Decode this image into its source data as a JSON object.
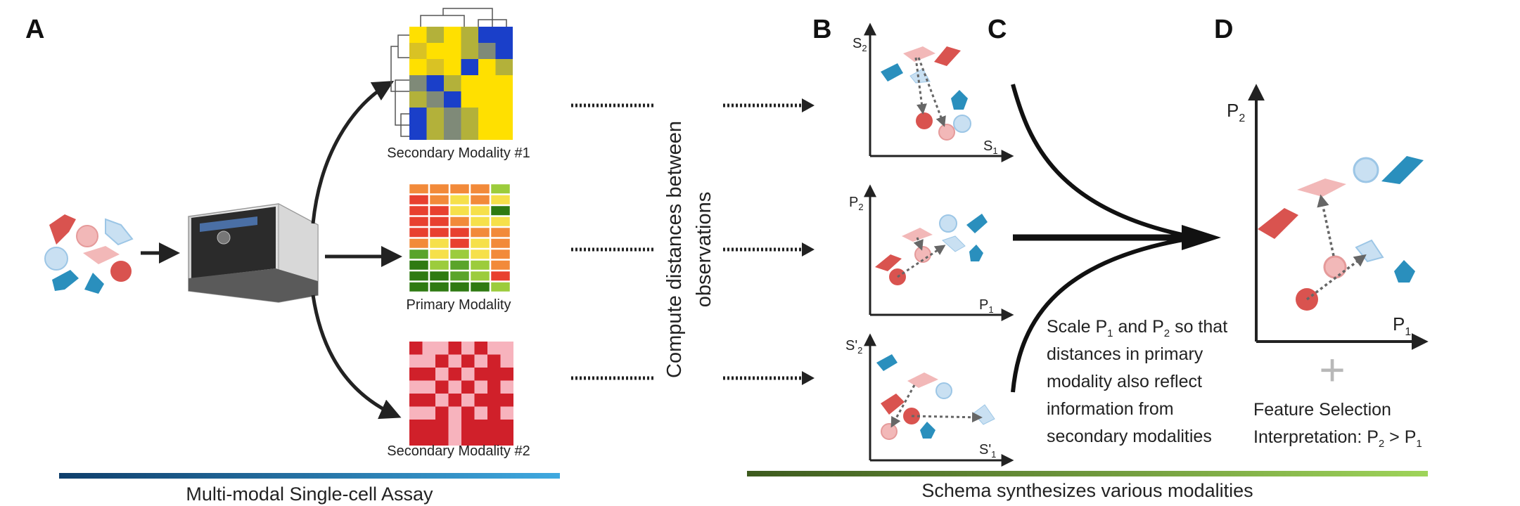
{
  "panels": {
    "a": "A",
    "b": "B",
    "c": "C",
    "d": "D"
  },
  "assay": {
    "secondary1_label": "Secondary Modality #1",
    "primary_label": "Primary Modality",
    "secondary2_label": "Secondary Modality #2",
    "footer": "Multi-modal Single-cell Assay"
  },
  "compute": {
    "line1": "Compute   distances   between",
    "line2": "observations"
  },
  "plots": {
    "s_axes": {
      "y": "S",
      "y_sub": "2",
      "x": "S",
      "x_sub": "1"
    },
    "p_axes": {
      "y": "P",
      "y_sub": "2",
      "x": "P",
      "x_sub": "1"
    },
    "sp_axes": {
      "y": "S'",
      "y_sub": "2",
      "x": "S'",
      "x_sub": "1"
    }
  },
  "scale_text": {
    "line1_a": "Scale P",
    "line1_sub1": "1",
    "line1_b": " and P",
    "line1_sub2": "2",
    "line1_c": " so that",
    "line2": "distances in primary",
    "line3": "modality also reflect",
    "line4": "information from",
    "line5": "secondary modalities"
  },
  "result": {
    "y": "P",
    "y_sub": "2",
    "x": "P",
    "x_sub": "1",
    "plus": "+",
    "feature": "Feature Selection",
    "interp_a": "Interpretation: P",
    "interp_sub1": "2",
    "interp_b": " > P",
    "interp_sub2": "1"
  },
  "footer_right": "Schema synthesizes various modalities",
  "colors": {
    "red_cell": "#d9534f",
    "pink_cell": "#f2b8b8",
    "blue_cell": "#2a8fbd",
    "light_blue_cell": "#c9e0f2",
    "bar_left_start": "#0e3e6b",
    "bar_left_end": "#3fa9e0",
    "bar_right_start": "#3d5a1e",
    "bar_right_end": "#9fd45a",
    "heat_yellow": "#ffe000",
    "heat_blue": "#1a3fc9",
    "heat_olive": "#b3b13a",
    "dark_red": "#d0202a",
    "light_pink": "#f7b3bd"
  }
}
